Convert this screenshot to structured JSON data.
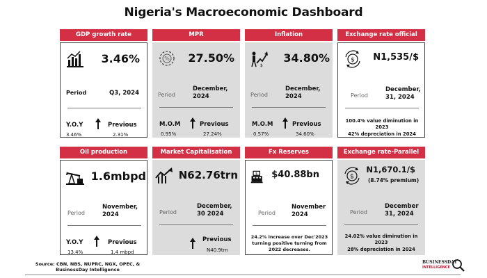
{
  "title": "Nigeria's Macroeconomic Dashboard",
  "cards": {
    "gdp": {
      "header": "GDP growth rate",
      "value": "3.46%",
      "period_label": "Period",
      "period": "Q3, 2024",
      "cmp_label": "Y.O.Y",
      "prev_label": "Previous",
      "cmp_value": "3.46%",
      "prev_value": "2.31%",
      "icon": "bar-chart-icon"
    },
    "mpr": {
      "header": "MPR",
      "value": "27.50%",
      "period_label": "Period",
      "period": "December, 2024",
      "cmp_label": "M.O.M",
      "prev_label": "Previous",
      "cmp_value": "0.95%",
      "prev_value": "27.24%",
      "icon": "percent-gear-icon"
    },
    "inflation": {
      "header": "Inflation",
      "value": "34.80%",
      "period_label": "Period",
      "period": "December, 2024",
      "cmp_label": "M.O.M",
      "prev_label": "Previous",
      "cmp_value": "0.57%",
      "prev_value": "34.60%",
      "icon": "rising-prices-icon"
    },
    "fx_official": {
      "header": "Exchange rate official",
      "value": "N1,535/$",
      "period_label": "Period",
      "period": "December, 31, 2024",
      "note_1": "100.4% value diminution in 2023",
      "note_2": "42% depreciation in 2024",
      "icon": "currency-exchange-icon"
    },
    "oil": {
      "header": "Oil production",
      "value": "1.6mbpd",
      "period_label": "Period",
      "period": "November, 2024",
      "cmp_label": "Y.O.Y",
      "prev_label": "Previous",
      "cmp_value": "13.4%",
      "prev_value": "1.4 mbpd",
      "icon": "oil-pump-icon"
    },
    "market_cap": {
      "header": "Market Capitalisation",
      "value": "N62.76trn",
      "period_label": "Period",
      "period": "December, 30 2024",
      "prev_label": "Previous",
      "prev_value": "N40.9trn",
      "icon": "stock-trend-icon"
    },
    "fx_reserves": {
      "header": "Fx Reserves",
      "value": "$40.88bn",
      "period_label": "Period",
      "period": "November 2024",
      "note": "24.2% increase over Dec'2023 turning positive turning from 2022 decreases.",
      "icon": "cash-register-icon"
    },
    "fx_parallel": {
      "header": "Exchange rate-Parallel",
      "value": "N1,670.1/$",
      "premium": "(8.74% premium)",
      "period_label": "Period",
      "period": "December 31, 2024",
      "note_1": "24.02% value diminution in 2023",
      "note_2": "28% depreciation in 2024",
      "icon": "currency-exchange-icon"
    }
  },
  "source": "Source: CBN, NBS, NUPRC, NGX, OPEC, & BusinessDay Intelligence",
  "logo": {
    "line1": "BUSINESSDAY",
    "line2": "INTELLIGENCE"
  },
  "colors": {
    "accent": "#d32f45",
    "card_gray": "#dcdcdc",
    "arrow": "#111111"
  }
}
